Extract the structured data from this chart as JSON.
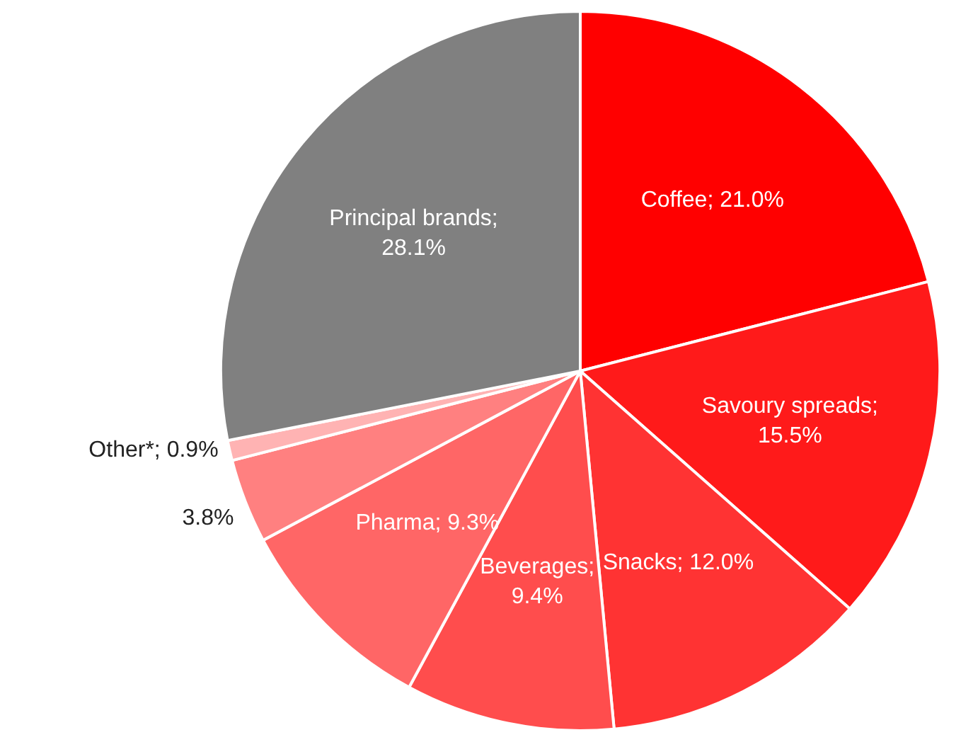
{
  "chart_data": {
    "type": "pie",
    "categories": [
      "Coffee",
      "Savoury spreads",
      "Snacks",
      "Beverages",
      "Pharma",
      null,
      "Other*",
      "Principal brands"
    ],
    "values": [
      21.0,
      15.5,
      12.0,
      9.4,
      9.3,
      3.8,
      0.9,
      28.1
    ],
    "value_labels": [
      "; 21.0%",
      ";\n15.5%",
      "; 12.0%",
      ";\n9.4%",
      "; 9.3%",
      "3.8%",
      "; 0.9%",
      ";\n28.1%"
    ],
    "colors": [
      "#ff0000",
      "#ff1a1a",
      "#ff3333",
      "#ff4d4d",
      "#ff6666",
      "#ff8080",
      "#ffb3b3",
      "#808080"
    ]
  }
}
